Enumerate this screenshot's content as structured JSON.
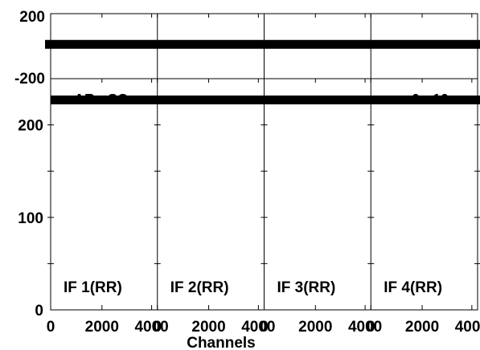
{
  "chart_data": {
    "type": "line",
    "xlabel": "Channels",
    "x_ticks": [
      "0",
      "2000",
      "4000"
    ],
    "panels": [
      {
        "label": "IF 1(RR)"
      },
      {
        "label": "IF 2(RR)"
      },
      {
        "label": "IF 3(RR)"
      },
      {
        "label": "IF 4(RR)"
      }
    ],
    "phase_plot": {
      "y_ticks": [
        "200",
        "-200"
      ],
      "ylim": [
        -200,
        200
      ],
      "series_values": [
        100,
        100,
        100,
        100
      ]
    },
    "amp_plot": {
      "y_ticks": [
        "0",
        "100",
        "200"
      ],
      "ylim": [
        0,
        250
      ],
      "series_values": [
        240,
        240,
        240,
        240
      ]
    },
    "partial_text_left": "AR - SC",
    "partial_text_right": "0 - 10"
  }
}
